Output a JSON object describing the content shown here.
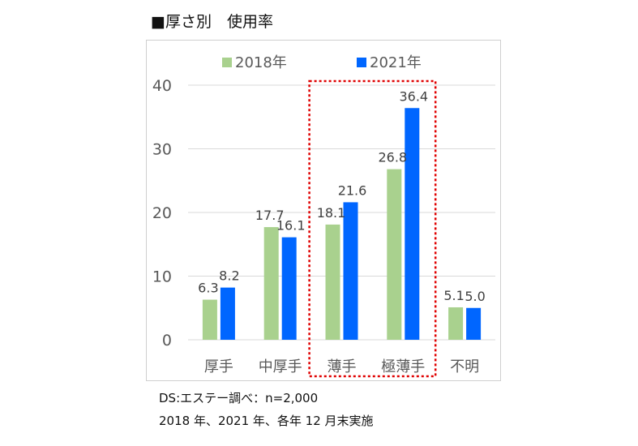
{
  "title": "■厚さ別　使用率",
  "notes": {
    "source": "DS:エステー調べ：n=2,000",
    "period": "2018 年、2021 年、各年 12 月末実施"
  },
  "colors": {
    "series_2018": "#a9d18e",
    "series_2021": "#0066ff",
    "highlight": "#e00000",
    "grid": "#d9d9d9",
    "axis_text": "#595959"
  },
  "chart_data": {
    "type": "bar",
    "title": "",
    "xlabel": "",
    "ylabel": "",
    "categories": [
      "厚手",
      "中厚手",
      "薄手",
      "極薄手",
      "不明"
    ],
    "series": [
      {
        "name": "2018年",
        "values": [
          6.3,
          17.7,
          18.1,
          26.8,
          5.1
        ]
      },
      {
        "name": "2021年",
        "values": [
          8.2,
          16.1,
          21.6,
          36.4,
          5.0
        ]
      }
    ],
    "ylim": [
      0,
      40
    ],
    "yticks": [
      0,
      10,
      20,
      30,
      40
    ],
    "grid": true,
    "legend": "top",
    "highlighted_categories": [
      "薄手",
      "極薄手"
    ]
  }
}
